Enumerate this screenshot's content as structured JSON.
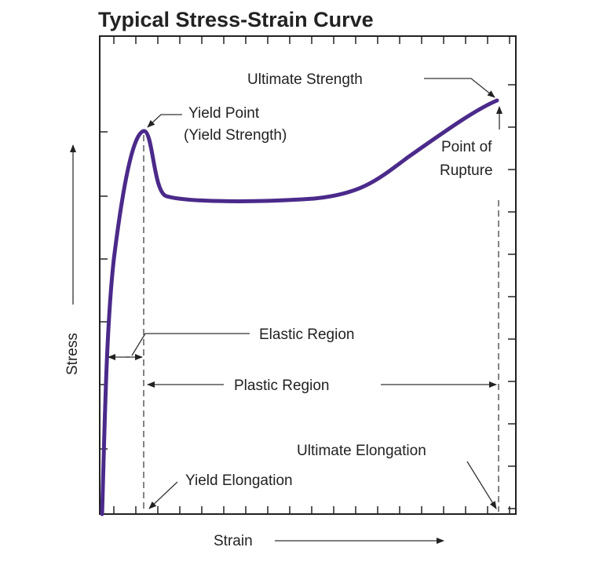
{
  "header": {
    "title": "Typical Stress-Strain Curve"
  },
  "axes": {
    "x_label": "Strain",
    "y_label": "Stress"
  },
  "annotations": {
    "ultimate_strength": "Ultimate Strength",
    "yield_point": [
      "Yield Point",
      "(Yield Strength)"
    ],
    "point_of_rupture": [
      "Point of",
      "Rupture"
    ],
    "elastic_region": "Elastic Region",
    "plastic_region": "Plastic Region",
    "ultimate_elongation": "Ultimate Elongation",
    "yield_elongation": "Yield Elongation"
  }
}
